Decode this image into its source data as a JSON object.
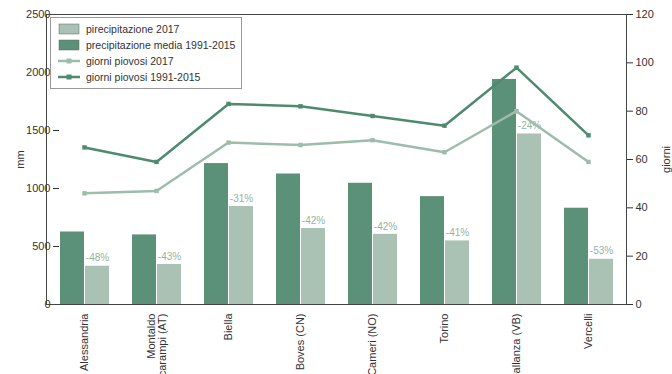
{
  "chart_data": {
    "type": "bar",
    "categories": [
      "Alessandria",
      "Montaldo\nScarampi (AT)",
      "Biella",
      "Boves (CN)",
      "Cameri (NO)",
      "Torino",
      "Pallanza (VB)",
      "Vercelli"
    ],
    "series": [
      {
        "name": "pirecipitazione 2017",
        "type": "bar",
        "color": "#a9c2b4",
        "values": [
          330,
          345,
          845,
          655,
          605,
          548,
          1470,
          390
        ],
        "annotations": [
          "-48%",
          "-43%",
          "-31%",
          "-42%",
          "-42%",
          "-41%",
          "-24%",
          "-53%"
        ]
      },
      {
        "name": "precipitazione media 1991-2015",
        "type": "bar",
        "color": "#5b9079",
        "values": [
          625,
          600,
          1215,
          1125,
          1045,
          930,
          1940,
          830
        ]
      },
      {
        "name": "giorni piovosi 2017",
        "type": "line",
        "axis": "y2",
        "color": "#9dbcab",
        "marker": "square",
        "values": [
          46,
          47,
          67,
          66,
          68,
          63,
          80,
          59
        ]
      },
      {
        "name": "giorni piovosi 1991-2015",
        "type": "line",
        "axis": "y2",
        "color": "#4e8a6e",
        "marker": "square",
        "values": [
          65,
          59,
          83,
          82,
          78,
          74,
          98,
          70
        ]
      }
    ],
    "y_label": "mm",
    "y2_label": "giorni",
    "ylim": [
      0,
      2500
    ],
    "yticks": [
      0,
      500,
      1000,
      1500,
      2000,
      2500
    ],
    "y2lim": [
      0,
      120
    ],
    "y2ticks": [
      0,
      20,
      40,
      60,
      80,
      100,
      120
    ],
    "legend": "top-left"
  }
}
